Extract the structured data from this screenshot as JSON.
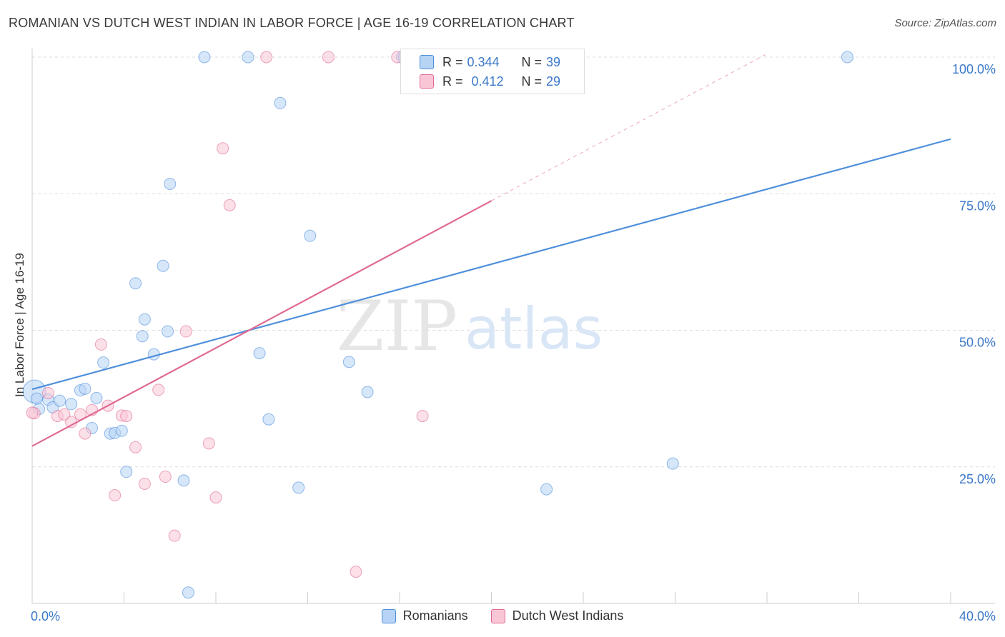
{
  "title": "ROMANIAN VS DUTCH WEST INDIAN IN LABOR FORCE | AGE 16-19 CORRELATION CHART",
  "source": "Source: ZipAtlas.com",
  "watermark": {
    "zip": "ZIP",
    "atlas": "atlas"
  },
  "correlation": {
    "rows": [
      {
        "r_label": "R = ",
        "r_value": "0.344",
        "n_label": "N = ",
        "n_value": "39",
        "color": "#b7d3f5"
      },
      {
        "r_label": "R = ",
        "r_value": "0.412",
        "n_label": "N = ",
        "n_value": "29",
        "color": "#f9c6d6"
      }
    ]
  },
  "legend": [
    {
      "label": "Romanians",
      "color": "#b7d3f5"
    },
    {
      "label": "Dutch West Indians",
      "color": "#f9c6d6"
    }
  ],
  "chart_data": {
    "type": "scatter",
    "xlabel": "",
    "ylabel": "In Labor Force | Age 16-19",
    "xlim": [
      0,
      40
    ],
    "ylim": [
      0,
      100
    ],
    "x_tick_labels": {
      "min": "0.0%",
      "max": "40.0%"
    },
    "y_tick_labels": [
      {
        "value": 25,
        "label": "25.0%"
      },
      {
        "value": 50,
        "label": "50.0%"
      },
      {
        "value": 75,
        "label": "75.0%"
      },
      {
        "value": 100,
        "label": "100.0%"
      }
    ],
    "grid": true,
    "series": [
      {
        "name": "Romanians",
        "color": "#4f8fdb",
        "fill": "#b7d3f5",
        "trend": {
          "x0": 0,
          "y0": 39.2,
          "x1": 40,
          "y1": 85.0
        },
        "points": [
          [
            0.1,
            38.8
          ],
          [
            0.3,
            35.6
          ],
          [
            0.7,
            37.3
          ],
          [
            0.9,
            35.9
          ],
          [
            1.2,
            37.1
          ],
          [
            1.7,
            36.5
          ],
          [
            2.1,
            39.0
          ],
          [
            2.3,
            39.3
          ],
          [
            2.6,
            32.1
          ],
          [
            2.8,
            37.6
          ],
          [
            3.1,
            44.1
          ],
          [
            3.4,
            31.1
          ],
          [
            3.6,
            31.2
          ],
          [
            3.9,
            31.6
          ],
          [
            4.1,
            24.1
          ],
          [
            4.5,
            58.6
          ],
          [
            4.8,
            48.9
          ],
          [
            4.9,
            52.0
          ],
          [
            5.3,
            45.6
          ],
          [
            5.7,
            61.8
          ],
          [
            5.9,
            49.8
          ],
          [
            6.0,
            76.8
          ],
          [
            6.6,
            22.5
          ],
          [
            6.8,
            2.0
          ],
          [
            7.5,
            100.0
          ],
          [
            9.4,
            100.0
          ],
          [
            9.9,
            45.8
          ],
          [
            10.3,
            33.7
          ],
          [
            10.8,
            91.6
          ],
          [
            11.6,
            21.2
          ],
          [
            12.1,
            67.3
          ],
          [
            13.8,
            44.2
          ],
          [
            14.6,
            38.7
          ],
          [
            16.1,
            100.0
          ],
          [
            16.2,
            100.0
          ],
          [
            22.4,
            20.9
          ],
          [
            27.9,
            25.6
          ],
          [
            35.5,
            100.0
          ],
          [
            0.2,
            37.5
          ]
        ]
      },
      {
        "name": "Dutch West Indians",
        "color": "#e06a93",
        "fill": "#f9c6d6",
        "trend": {
          "x0": 0,
          "y0": 28.8,
          "x1": 20,
          "y1": 73.7
        },
        "trend_extension": {
          "x0": 20,
          "y0": 73.7,
          "x1": 32,
          "y1": 100.6
        },
        "points": [
          [
            0.1,
            34.8
          ],
          [
            0.7,
            38.5
          ],
          [
            1.1,
            34.3
          ],
          [
            1.4,
            34.6
          ],
          [
            1.7,
            33.2
          ],
          [
            2.1,
            34.6
          ],
          [
            2.3,
            31.1
          ],
          [
            2.6,
            35.4
          ],
          [
            3.0,
            47.4
          ],
          [
            3.3,
            36.2
          ],
          [
            3.6,
            19.8
          ],
          [
            3.9,
            34.4
          ],
          [
            4.1,
            34.3
          ],
          [
            4.5,
            28.6
          ],
          [
            4.9,
            21.9
          ],
          [
            5.5,
            39.1
          ],
          [
            5.8,
            23.2
          ],
          [
            6.2,
            12.4
          ],
          [
            6.7,
            49.8
          ],
          [
            7.7,
            29.3
          ],
          [
            8.0,
            19.4
          ],
          [
            8.3,
            83.3
          ],
          [
            8.6,
            72.9
          ],
          [
            10.2,
            100.0
          ],
          [
            12.9,
            100.0
          ],
          [
            14.1,
            5.8
          ],
          [
            15.9,
            100.0
          ],
          [
            17.0,
            34.3
          ],
          [
            0.0,
            34.9
          ]
        ]
      }
    ]
  }
}
